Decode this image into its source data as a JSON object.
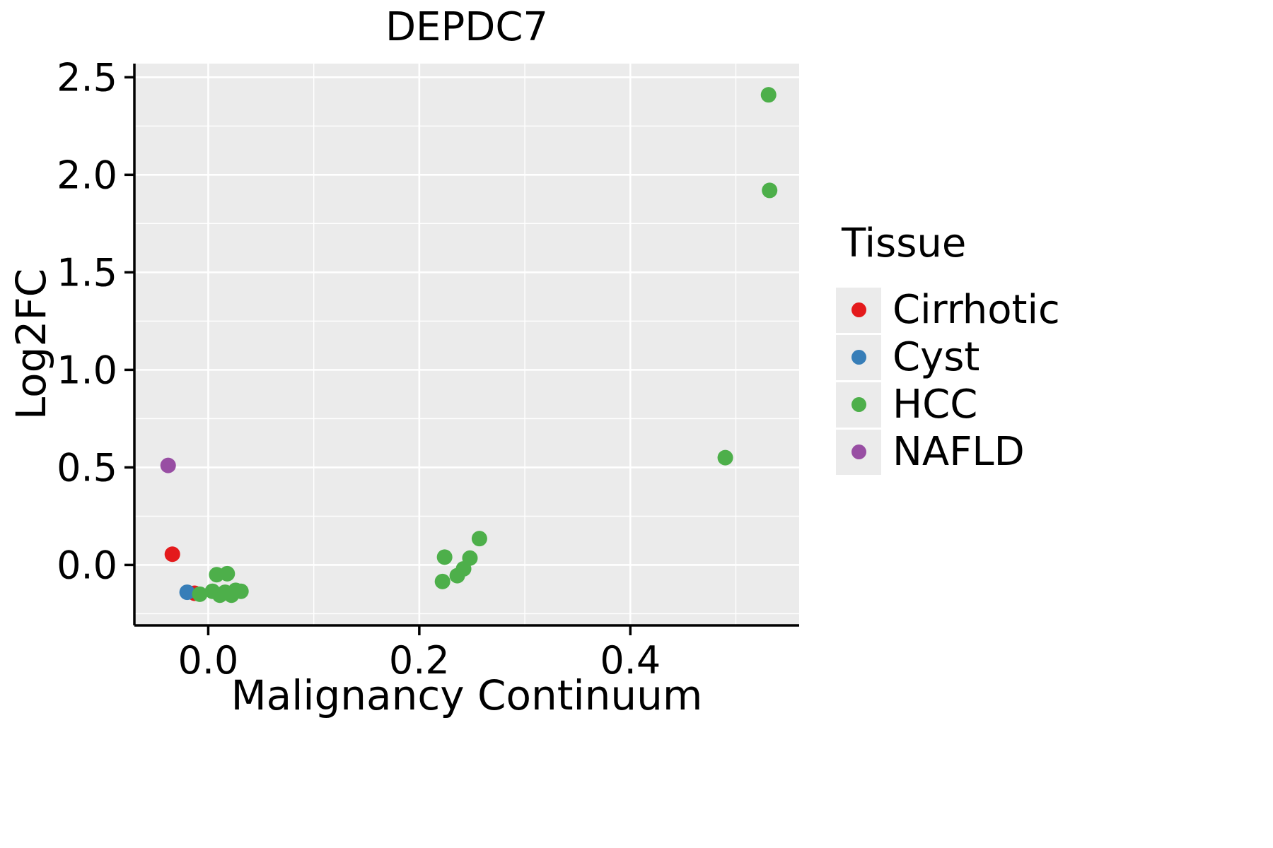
{
  "chart_data": {
    "type": "scatter",
    "title": "DEPDC7",
    "xlabel": "Malignancy Continuum",
    "ylabel": "Log2FC",
    "legend_title": "Tissue",
    "xlim": [
      -0.07,
      0.56
    ],
    "ylim": [
      -0.31,
      2.57
    ],
    "x_ticks": [
      0.0,
      0.2,
      0.4
    ],
    "y_ticks": [
      0.0,
      0.5,
      1.0,
      1.5,
      2.0,
      2.5
    ],
    "x_minor": [
      0.1,
      0.3,
      0.5
    ],
    "y_minor": [
      -0.25,
      0.25,
      0.75,
      1.25,
      1.75,
      2.25
    ],
    "grid": true,
    "legend_position": "right",
    "panel_bg": "#EBEBEB",
    "grid_color": "#FFFFFF",
    "axis_color": "#000000",
    "point_radius": 11,
    "series": [
      {
        "name": "Cirrhotic",
        "color": "#E41A1C",
        "points": [
          [
            -0.034,
            0.055
          ],
          [
            -0.013,
            -0.145
          ]
        ]
      },
      {
        "name": "Cyst",
        "color": "#377EB8",
        "points": [
          [
            -0.02,
            -0.14
          ]
        ]
      },
      {
        "name": "HCC",
        "color": "#4DAF4A",
        "points": [
          [
            -0.008,
            -0.15
          ],
          [
            0.004,
            -0.135
          ],
          [
            0.008,
            -0.05
          ],
          [
            0.011,
            -0.155
          ],
          [
            0.016,
            -0.14
          ],
          [
            0.018,
            -0.045
          ],
          [
            0.022,
            -0.155
          ],
          [
            0.026,
            -0.13
          ],
          [
            0.031,
            -0.135
          ],
          [
            0.222,
            -0.085
          ],
          [
            0.224,
            0.04
          ],
          [
            0.236,
            -0.055
          ],
          [
            0.242,
            -0.02
          ],
          [
            0.248,
            0.035
          ],
          [
            0.257,
            0.135
          ],
          [
            0.49,
            0.55
          ],
          [
            0.531,
            2.41
          ],
          [
            0.532,
            1.92
          ]
        ]
      },
      {
        "name": "NAFLD",
        "color": "#984EA3",
        "points": [
          [
            -0.038,
            0.51
          ]
        ]
      }
    ]
  }
}
